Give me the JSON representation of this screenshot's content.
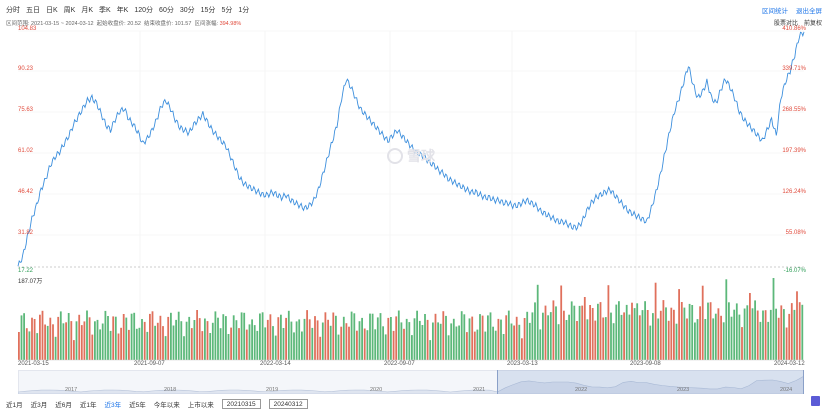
{
  "period_tabs": [
    "分时",
    "五日",
    "日K",
    "周K",
    "月K",
    "季K",
    "年K",
    "120分",
    "60分",
    "30分",
    "15分",
    "5分",
    "1分"
  ],
  "range_info": {
    "label": "区间范围: 2021-03-15 ~ 2024-03-12",
    "start_price": "起始收盘价: 20.52",
    "end_price": "结束收盘价: 101.57",
    "change_label": "区间涨幅:",
    "change_value": "394.98%"
  },
  "top_right": {
    "range_stats": "区间统计",
    "exit_fullscreen": "退出全屏"
  },
  "top_right2": {
    "compare": "股票对比",
    "adjust": "前复权"
  },
  "y_left_labels": [
    "104.83",
    "90.23",
    "75.63",
    "61.02",
    "46.42",
    "31.82",
    "17.22"
  ],
  "y_right_labels": [
    "410.86%",
    "339.71%",
    "268.55%",
    "197.39%",
    "126.24%",
    "55.08%",
    "-16.07%"
  ],
  "volume_label": "187.07万",
  "x_labels": [
    "2021-03-15",
    "2021-09-07",
    "2022-03-14",
    "2022-09-07",
    "2023-03-13",
    "2023-09-08",
    "2024-03-12"
  ],
  "year_labels": [
    "2017",
    "2018",
    "2019",
    "2020",
    "2021",
    "2022",
    "2023",
    "2024"
  ],
  "watermark": "雪球",
  "bottom_bar": {
    "ranges": [
      "近1月",
      "近3月",
      "近6月",
      "近1年",
      "近3年",
      "近5年",
      "今年以来",
      "上市以来"
    ],
    "selected": "近3年",
    "start_date": "20210315",
    "end_date": "20240312"
  },
  "colors": {
    "line": "#3d8fdd",
    "up": "#e0705c",
    "down": "#5cb87a",
    "accent": "#1a73e8"
  },
  "chart_data": {
    "type": "line",
    "title": "",
    "ylim": [
      17.22,
      104.83
    ],
    "x_range": [
      "2021-03-15",
      "2024-03-12"
    ],
    "series": [
      {
        "values": [
          17.5,
          21,
          28,
          35,
          40,
          46,
          50,
          55,
          58,
          60,
          63,
          66,
          70,
          73,
          76,
          79,
          80,
          78,
          74,
          70,
          68,
          72,
          75,
          76,
          72,
          70,
          67,
          63,
          65,
          68,
          72,
          77,
          79,
          76,
          72,
          69,
          68,
          67,
          70,
          72,
          74,
          71,
          68,
          66,
          64,
          62,
          58,
          54,
          50,
          48,
          47,
          46,
          45,
          44,
          44,
          45,
          44,
          43,
          44,
          42,
          41,
          40,
          39,
          40,
          42,
          46,
          52,
          58,
          64,
          70,
          80,
          87,
          84,
          80,
          76,
          74,
          72,
          70,
          68,
          66,
          64,
          66,
          68,
          66,
          64,
          62,
          60,
          59,
          58,
          56,
          55,
          53,
          52,
          50,
          49,
          48,
          47,
          46,
          45,
          45,
          44,
          43,
          43,
          42,
          42,
          41,
          41,
          40,
          40,
          41,
          42,
          41,
          40,
          38,
          37,
          36,
          35,
          34,
          34,
          33,
          32,
          32,
          34,
          38,
          41,
          43,
          44,
          45,
          46,
          44,
          42,
          40,
          38,
          37,
          36,
          35,
          34,
          39,
          45,
          52,
          60,
          68,
          75,
          80,
          86,
          92,
          85,
          80,
          82,
          86,
          80,
          78,
          83,
          87,
          84,
          80,
          75,
          72,
          70,
          68,
          66,
          64,
          68,
          72,
          66,
          80,
          86,
          90,
          96,
          103,
          104.5
        ]
      }
    ]
  }
}
